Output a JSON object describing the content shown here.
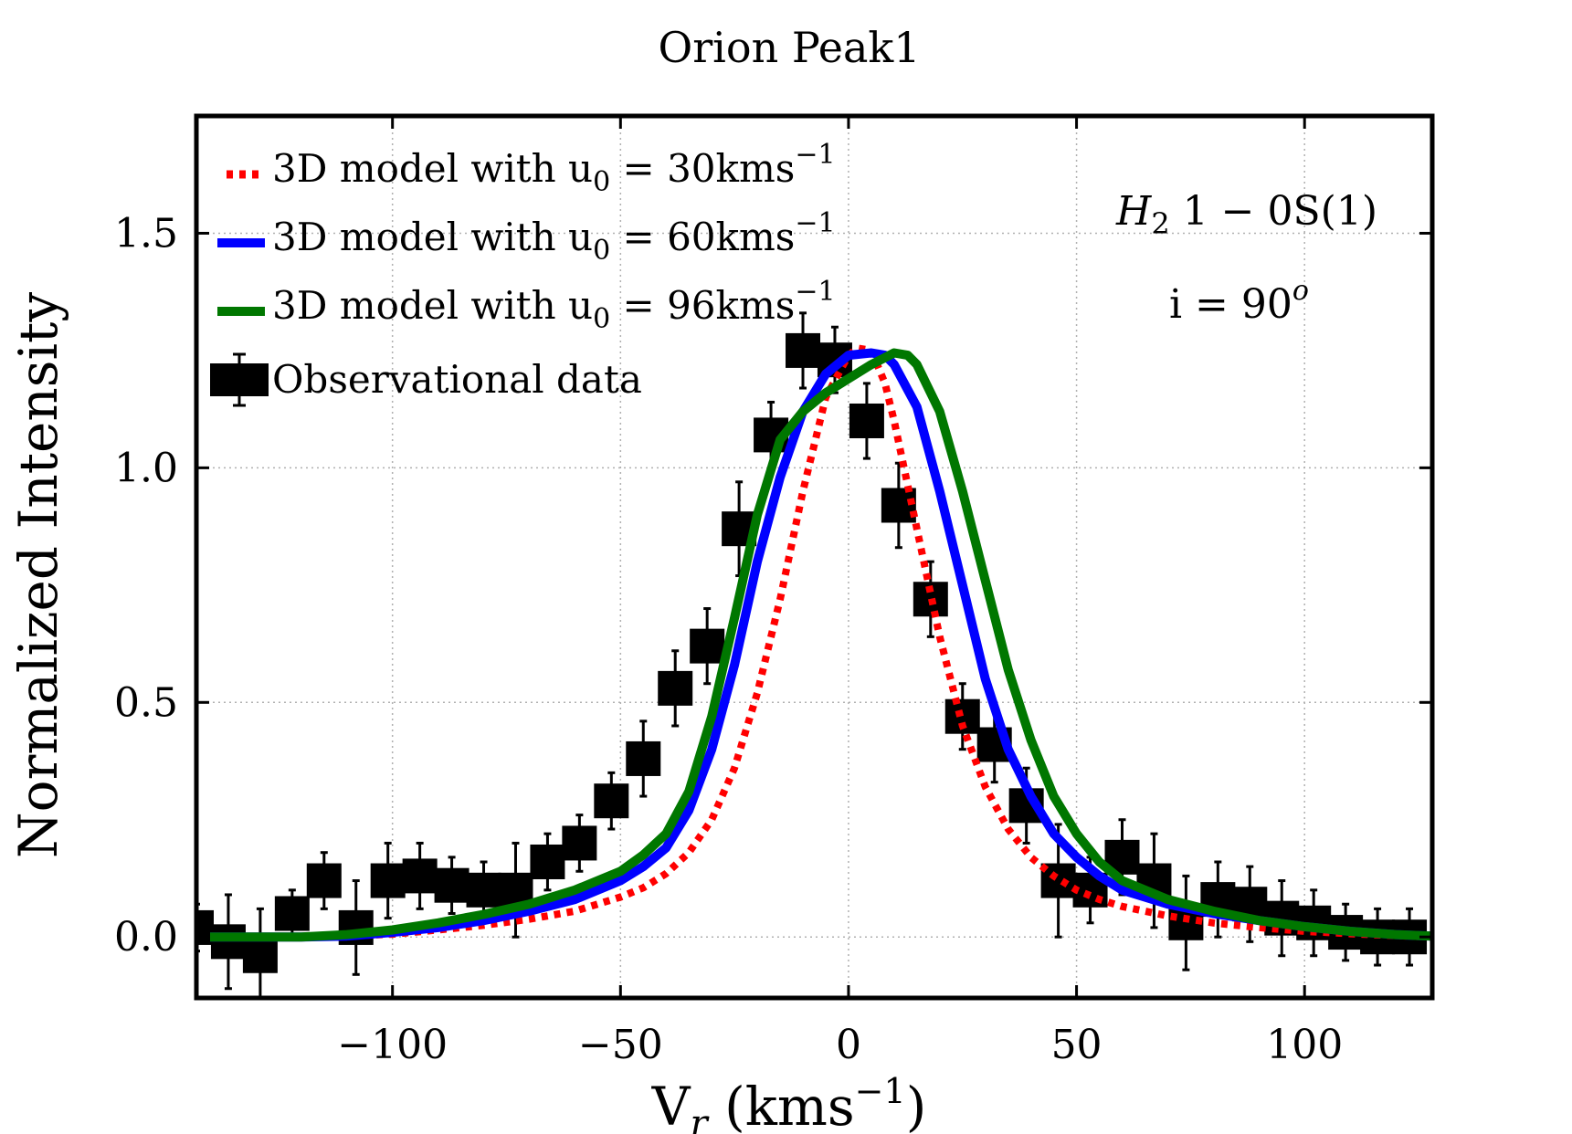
{
  "chart_data": {
    "type": "line",
    "title": "Orion Peak1",
    "xlabel": "V",
    "xlabel_sub": "r",
    "xlabel_unit_open": "(kms",
    "xlabel_unit_sup": "−1",
    "xlabel_unit_close": ")",
    "ylabel": "Normalized Intensity",
    "xlim": [
      -143,
      128
    ],
    "ylim": [
      -0.13,
      1.75
    ],
    "grid": true,
    "legend_position": "top-left",
    "x_ticks": [
      {
        "value": -100,
        "label": "−100"
      },
      {
        "value": -50,
        "label": "−50"
      },
      {
        "value": 0,
        "label": "0"
      },
      {
        "value": 50,
        "label": "50"
      },
      {
        "value": 100,
        "label": "100"
      }
    ],
    "y_ticks": [
      {
        "value": 0.0,
        "label": "0.0"
      },
      {
        "value": 0.5,
        "label": "0.5"
      },
      {
        "value": 1.0,
        "label": "1.0"
      },
      {
        "value": 1.5,
        "label": "1.5"
      }
    ],
    "annotations": {
      "line_label": {
        "h": "H",
        "h_sub": "2",
        "rest": " 1 − 0S(1)"
      },
      "inclination": {
        "text": "i = 90",
        "sup": "o"
      }
    },
    "series": [
      {
        "name": "3D model with u",
        "name_sub": "0",
        "name_rest": " = 30kms",
        "name_sup": "−1",
        "style": "dotted",
        "color": "#ff0000",
        "x": [
          -140,
          -130,
          -120,
          -110,
          -100,
          -90,
          -80,
          -70,
          -60,
          -50,
          -45,
          -40,
          -35,
          -30,
          -25,
          -20,
          -15,
          -10,
          -5,
          0,
          2,
          5,
          8,
          10,
          15,
          20,
          25,
          30,
          35,
          40,
          45,
          50,
          55,
          60,
          70,
          80,
          90,
          100,
          110,
          120,
          128
        ],
        "y": [
          0,
          0,
          0,
          0.002,
          0.006,
          0.015,
          0.025,
          0.038,
          0.055,
          0.085,
          0.105,
          0.135,
          0.18,
          0.25,
          0.36,
          0.52,
          0.72,
          0.95,
          1.15,
          1.24,
          1.255,
          1.25,
          1.18,
          1.1,
          0.87,
          0.64,
          0.45,
          0.32,
          0.23,
          0.17,
          0.13,
          0.1,
          0.08,
          0.065,
          0.045,
          0.03,
          0.02,
          0.012,
          0.007,
          0.003,
          0.0
        ]
      },
      {
        "name": "3D model with u",
        "name_sub": "0",
        "name_rest": " = 60kms",
        "name_sup": "−1",
        "style": "solid",
        "color": "#0000ff",
        "x": [
          -140,
          -130,
          -120,
          -110,
          -100,
          -90,
          -80,
          -70,
          -60,
          -50,
          -45,
          -40,
          -35,
          -30,
          -25,
          -20,
          -15,
          -10,
          -5,
          0,
          5,
          8,
          10,
          15,
          20,
          25,
          30,
          35,
          40,
          45,
          50,
          55,
          60,
          70,
          80,
          90,
          100,
          110,
          120,
          128
        ],
        "y": [
          0,
          0,
          0,
          0.002,
          0.01,
          0.02,
          0.035,
          0.055,
          0.08,
          0.12,
          0.15,
          0.19,
          0.27,
          0.4,
          0.58,
          0.8,
          0.98,
          1.12,
          1.2,
          1.24,
          1.245,
          1.24,
          1.22,
          1.13,
          0.95,
          0.75,
          0.55,
          0.4,
          0.3,
          0.22,
          0.17,
          0.13,
          0.1,
          0.07,
          0.05,
          0.035,
          0.022,
          0.012,
          0.005,
          0.002
        ]
      },
      {
        "name": "3D model with u",
        "name_sub": "0",
        "name_rest": " = 96kms",
        "name_sup": "−1",
        "style": "solid",
        "color": "#007700",
        "x": [
          -140,
          -130,
          -120,
          -110,
          -100,
          -90,
          -80,
          -70,
          -60,
          -50,
          -45,
          -40,
          -35,
          -30,
          -25,
          -20,
          -15,
          -10,
          -5,
          0,
          5,
          10,
          13,
          15,
          20,
          25,
          30,
          35,
          40,
          45,
          50,
          55,
          60,
          70,
          80,
          90,
          100,
          110,
          120,
          128
        ],
        "y": [
          0,
          0,
          0,
          0.005,
          0.015,
          0.03,
          0.048,
          0.07,
          0.1,
          0.14,
          0.175,
          0.22,
          0.31,
          0.47,
          0.68,
          0.9,
          1.06,
          1.12,
          1.16,
          1.19,
          1.22,
          1.245,
          1.24,
          1.22,
          1.12,
          0.95,
          0.76,
          0.57,
          0.42,
          0.3,
          0.22,
          0.16,
          0.12,
          0.08,
          0.055,
          0.035,
          0.022,
          0.012,
          0.005,
          0.002
        ]
      },
      {
        "name": "Observational data",
        "style": "markers",
        "color": "#000000",
        "x": [
          -143,
          -136,
          -129,
          -122,
          -115,
          -108,
          -101,
          -94,
          -87,
          -80,
          -73,
          -66,
          -59,
          -52,
          -45,
          -38,
          -31,
          -24,
          -17,
          -10,
          -3,
          4,
          11,
          18,
          25,
          32,
          39,
          46,
          53,
          60,
          67,
          74,
          81,
          88,
          95,
          102,
          109,
          116,
          123
        ],
        "y": [
          0.02,
          -0.01,
          -0.04,
          0.05,
          0.12,
          0.02,
          0.12,
          0.13,
          0.11,
          0.1,
          0.1,
          0.16,
          0.2,
          0.29,
          0.38,
          0.53,
          0.62,
          0.87,
          1.07,
          1.25,
          1.23,
          1.1,
          0.92,
          0.72,
          0.47,
          0.41,
          0.28,
          0.12,
          0.1,
          0.17,
          0.12,
          0.03,
          0.08,
          0.07,
          0.04,
          0.03,
          0.01,
          0.0,
          0.0
        ],
        "err": [
          0.05,
          0.1,
          0.1,
          0.05,
          0.06,
          0.1,
          0.08,
          0.07,
          0.06,
          0.06,
          0.1,
          0.06,
          0.06,
          0.06,
          0.08,
          0.08,
          0.08,
          0.1,
          0.07,
          0.08,
          0.07,
          0.08,
          0.09,
          0.08,
          0.07,
          0.08,
          0.08,
          0.12,
          0.07,
          0.08,
          0.1,
          0.1,
          0.08,
          0.08,
          0.08,
          0.07,
          0.06,
          0.06,
          0.06
        ]
      }
    ]
  }
}
